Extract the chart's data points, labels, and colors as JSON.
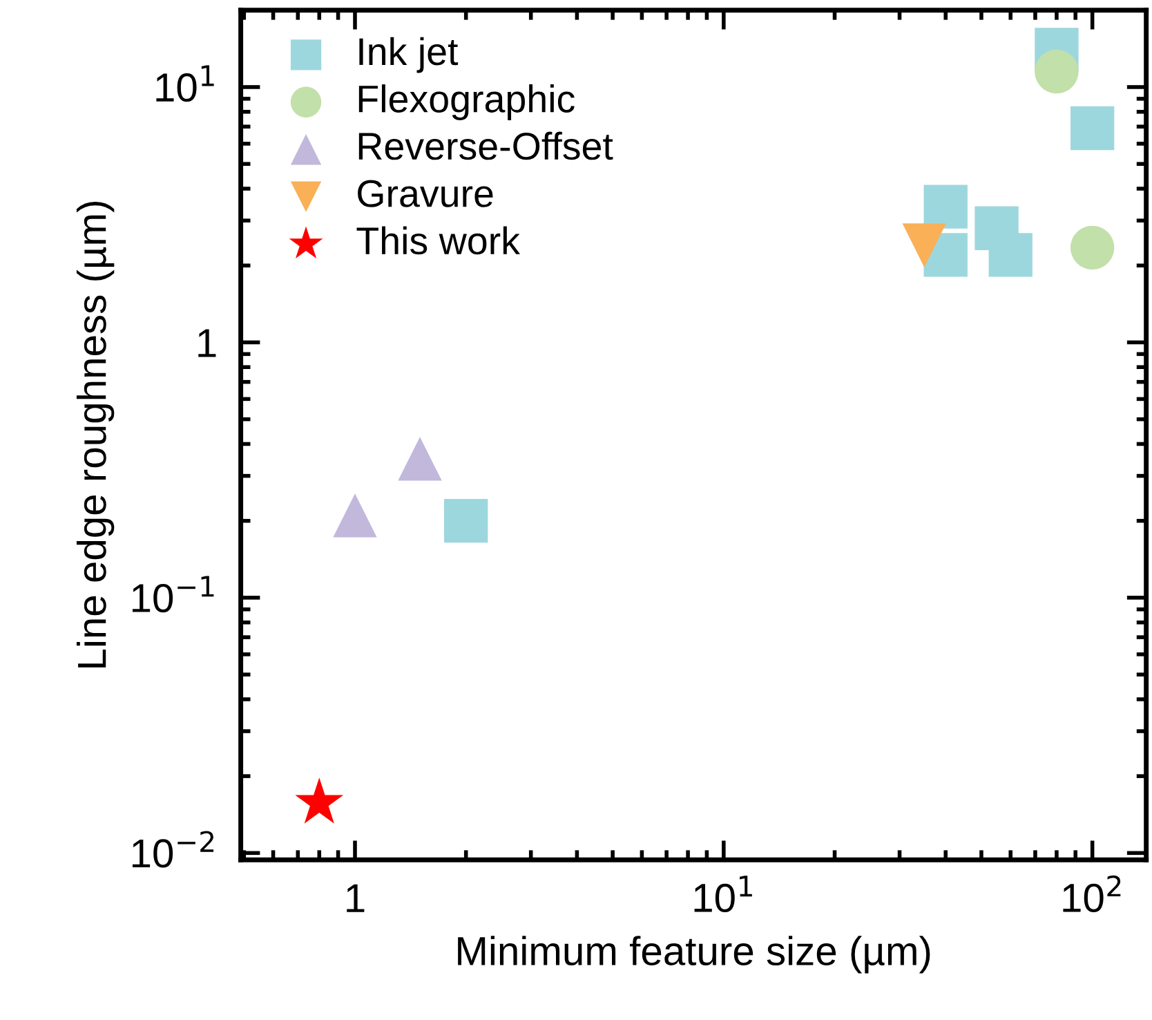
{
  "chart_data": {
    "type": "scatter",
    "xlabel": "Minimum feature size (µm)",
    "ylabel": "Line edge roughness (µm)",
    "log": "xy",
    "xlim": [
      0.49,
      140
    ],
    "ylim": [
      0.0094,
      20
    ],
    "xticks": [
      {
        "value": 1,
        "label": "1"
      },
      {
        "value": 10,
        "label": "10$^{1}$"
      },
      {
        "value": 100,
        "label": "10$^{2}$"
      }
    ],
    "yticks": [
      {
        "value": 0.01,
        "label": "10$^{−2}$"
      },
      {
        "value": 0.1,
        "label": "10$^{−1}$"
      },
      {
        "value": 1,
        "label": "1"
      },
      {
        "value": 10,
        "label": "10$^{1}$"
      }
    ],
    "grid": false,
    "legend": "top left",
    "series": [
      {
        "name": "Ink jet",
        "color": "#9dd7de",
        "marker": "square",
        "x": [
          80,
          100,
          40,
          40,
          55,
          60,
          2.0
        ],
        "values": [
          14,
          6.9,
          3.4,
          2.2,
          2.8,
          2.2,
          0.2
        ]
      },
      {
        "name": "Flexographic",
        "color": "#c2e0a9",
        "marker": "circle",
        "x": [
          80,
          100
        ],
        "values": [
          11.5,
          2.35
        ]
      },
      {
        "name": "Reverse-Offset",
        "color": "#c1b8dc",
        "marker": "triangle",
        "x": [
          1.0,
          1.5
        ],
        "values": [
          0.21,
          0.35
        ]
      },
      {
        "name": "Gravure",
        "color": "#f9b057",
        "marker": "triangle_down",
        "x": [
          35
        ],
        "values": [
          2.4
        ]
      },
      {
        "name": "This work",
        "color": "#ff0000",
        "marker": "star",
        "x": [
          0.8
        ],
        "values": [
          0.0157
        ]
      }
    ]
  }
}
